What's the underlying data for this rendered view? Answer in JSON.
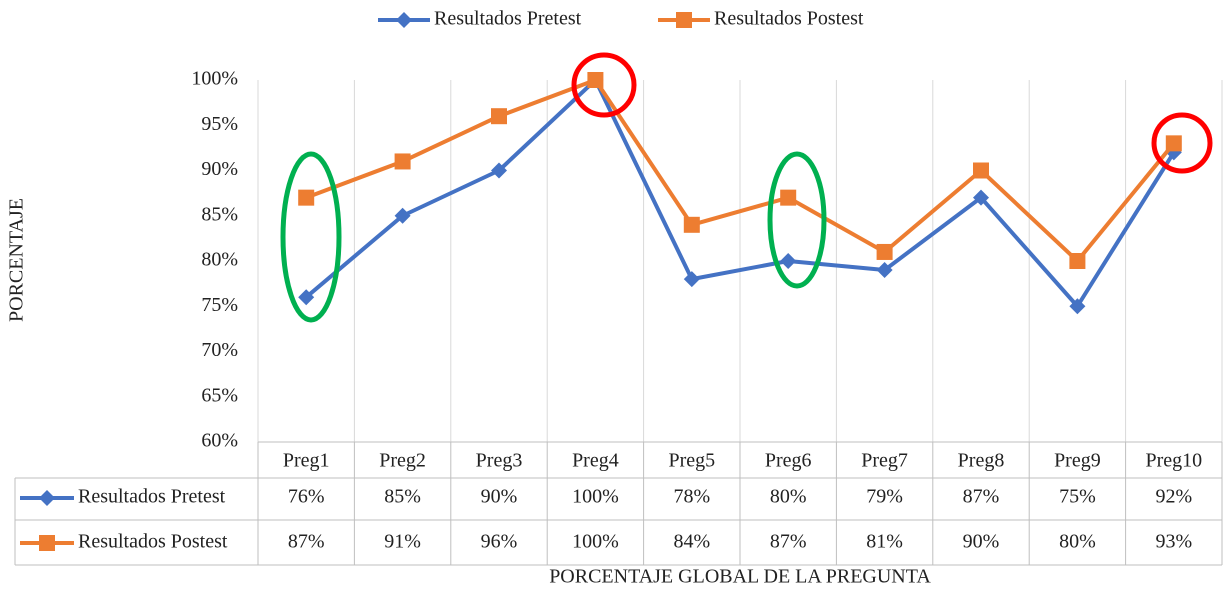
{
  "chart_data": {
    "type": "line",
    "y_label": "PORCENTAJE",
    "x_label": "PORCENTAJE GLOBAL DE LA PREGUNTA",
    "categories": [
      "Preg1",
      "Preg2",
      "Preg3",
      "Preg4",
      "Preg5",
      "Preg6",
      "Preg7",
      "Preg8",
      "Preg9",
      "Preg10"
    ],
    "series": [
      {
        "name": "Resultados Pretest",
        "color": "#4472c4",
        "marker": "diamond",
        "values": [
          76,
          85,
          90,
          100,
          78,
          80,
          79,
          87,
          75,
          92
        ],
        "value_labels": [
          "76%",
          "85%",
          "90%",
          "100%",
          "78%",
          "80%",
          "79%",
          "87%",
          "75%",
          "92%"
        ]
      },
      {
        "name": "Resultados Postest",
        "color": "#ed7d31",
        "marker": "square",
        "values": [
          87,
          91,
          96,
          100,
          84,
          87,
          81,
          90,
          80,
          93
        ],
        "value_labels": [
          "87%",
          "91%",
          "96%",
          "100%",
          "84%",
          "87%",
          "81%",
          "90%",
          "80%",
          "93%"
        ]
      }
    ],
    "ylim": [
      60,
      100
    ],
    "yticks": [
      {
        "value": 60,
        "label": "60%"
      },
      {
        "value": 65,
        "label": "65%"
      },
      {
        "value": 70,
        "label": "70%"
      },
      {
        "value": 75,
        "label": "75%"
      },
      {
        "value": 80,
        "label": "80%"
      },
      {
        "value": 85,
        "label": "85%"
      },
      {
        "value": 90,
        "label": "90%"
      },
      {
        "value": 95,
        "label": "95%"
      },
      {
        "value": 100,
        "label": "100%"
      }
    ],
    "legend": "top"
  }
}
